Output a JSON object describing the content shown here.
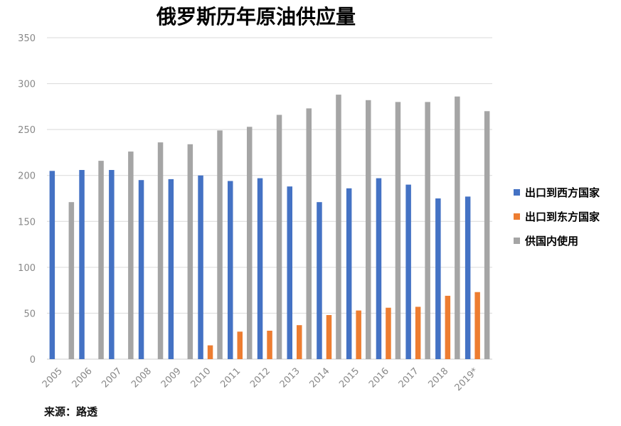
{
  "chart_data": {
    "type": "bar",
    "title": "俄罗斯历年原油供应量",
    "source": "来源：路透",
    "categories": [
      "2005",
      "2006",
      "2007",
      "2008",
      "2009",
      "2010",
      "2011",
      "2012",
      "2013",
      "2014",
      "2015",
      "2016",
      "2017",
      "2018",
      "2019*"
    ],
    "series": [
      {
        "name": "出口到西方国家",
        "color": "#4472C4",
        "values": [
          205,
          206,
          206,
          195,
          196,
          200,
          194,
          197,
          188,
          171,
          186,
          197,
          190,
          175,
          177
        ]
      },
      {
        "name": "出口到东方国家",
        "color": "#ED7D31",
        "values": [
          0,
          0,
          0,
          0,
          0,
          15,
          30,
          31,
          37,
          48,
          53,
          56,
          57,
          69,
          73
        ]
      },
      {
        "name": "供国内使用",
        "color": "#A5A5A5",
        "values": [
          171,
          216,
          226,
          236,
          234,
          249,
          253,
          266,
          273,
          288,
          282,
          280,
          280,
          286,
          270
        ]
      }
    ],
    "ylim": [
      0,
      350
    ],
    "yticks": [
      0,
      50,
      100,
      150,
      200,
      250,
      300,
      350
    ],
    "grid": true,
    "legend": "right"
  }
}
